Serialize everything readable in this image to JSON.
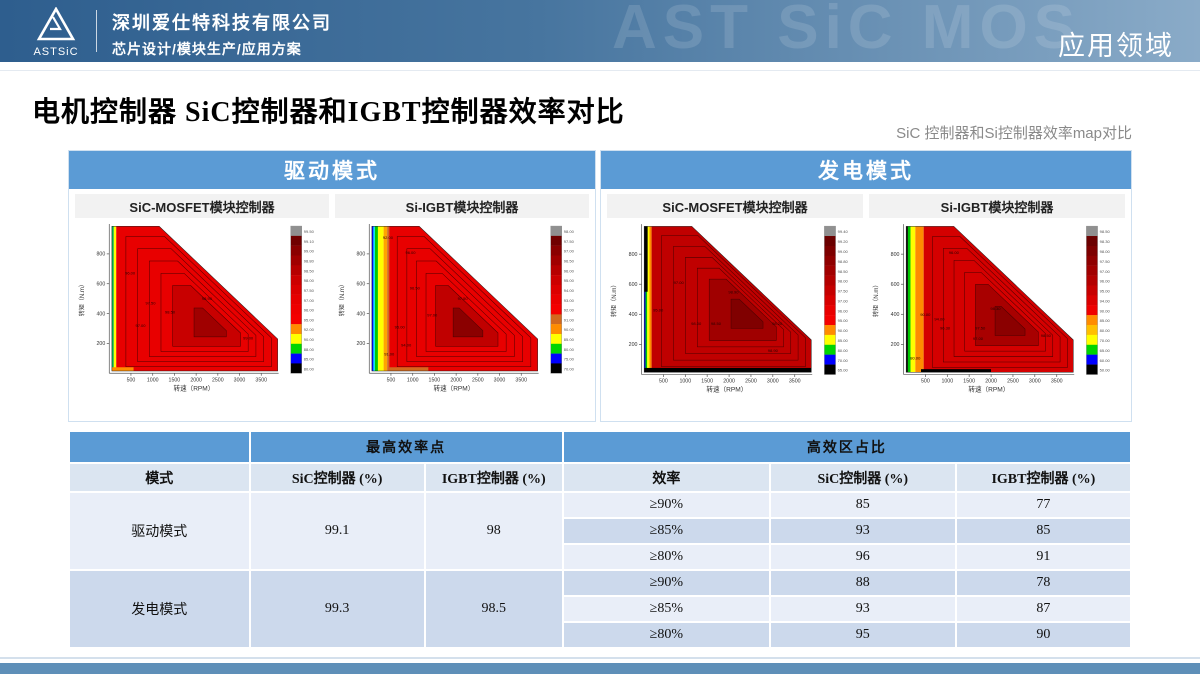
{
  "header": {
    "logo_text": "ASTSiC",
    "company_name": "深圳爱仕特科技有限公司",
    "company_tagline": "芯片设计/模块生产/应用方案",
    "watermark": "AST SiC MOS",
    "page_tag": "应用领域"
  },
  "page": {
    "title": "电机控制器 SiC控制器和IGBT控制器效率对比",
    "subtitle": "SiC 控制器和Si控制器效率map对比"
  },
  "panels": [
    {
      "title": "驱动模式",
      "plot_titles": [
        "SiC-MOSFET模块控制器",
        "Si-IGBT模块控制器"
      ]
    },
    {
      "title": "发电模式",
      "plot_titles": [
        "SiC-MOSFET模块控制器",
        "Si-IGBT模块控制器"
      ]
    }
  ],
  "chart_data": [
    {
      "type": "heatmap",
      "title": "SiC-MOSFET模块控制器",
      "panel": "驱动模式",
      "xlabel": "转速（RPM）",
      "ylabel": "转矩（N.m）",
      "xlim": [
        0,
        3900
      ],
      "ylim": [
        0,
        1000
      ],
      "x_ticks": [
        500,
        1000,
        1500,
        2000,
        2500,
        3000,
        3500
      ],
      "y_ticks": [
        200,
        400,
        600,
        800
      ],
      "peak_efficiency_pct": 99.1,
      "colorbar": {
        "labels": [
          "99.50",
          "99.10",
          "99.00",
          "98.80",
          "98.50",
          "98.00",
          "97.50",
          "97.00",
          "96.00",
          "95.00",
          "92.00",
          "90.00",
          "88.00",
          "85.00",
          "80.00"
        ],
        "colors": [
          "#909090",
          "#700000",
          "#8a0000",
          "#a00000",
          "#b60000",
          "#cc0000",
          "#da0000",
          "#e60000",
          "#ee0000",
          "#f40000",
          "#ff8c00",
          "#ffff00",
          "#00d500",
          "#0000ff",
          "#000000"
        ]
      },
      "contour_labels": [
        {
          "t": "98.90",
          "x": 2250,
          "y": 490
        },
        {
          "t": "98.50",
          "x": 1400,
          "y": 400
        },
        {
          "t": "97.50",
          "x": 950,
          "y": 460
        },
        {
          "t": "97.00",
          "x": 720,
          "y": 310
        },
        {
          "t": "96.00",
          "x": 480,
          "y": 660
        },
        {
          "t": "99.00",
          "x": 3200,
          "y": 225
        }
      ]
    },
    {
      "type": "heatmap",
      "title": "Si-IGBT模块控制器",
      "panel": "驱动模式",
      "xlabel": "转速（RPM）",
      "ylabel": "转矩（N.m）",
      "xlim": [
        0,
        3900
      ],
      "ylim": [
        0,
        1000
      ],
      "x_ticks": [
        500,
        1000,
        1500,
        2000,
        2500,
        3000,
        3500
      ],
      "y_ticks": [
        200,
        400,
        600,
        800
      ],
      "peak_efficiency_pct": 98,
      "colorbar": {
        "labels": [
          "98.00",
          "97.50",
          "97.00",
          "96.50",
          "96.00",
          "95.00",
          "94.00",
          "93.00",
          "92.00",
          "91.00",
          "90.00",
          "85.00",
          "80.00",
          "75.00",
          "70.00"
        ],
        "colors": [
          "#909090",
          "#700000",
          "#8a0000",
          "#a00000",
          "#b60000",
          "#cc0000",
          "#dc0000",
          "#ea0000",
          "#f40000",
          "#d2691e",
          "#ff8c00",
          "#ffff00",
          "#00d500",
          "#0000ff",
          "#000000"
        ]
      },
      "contour_labels": [
        {
          "t": "97.50",
          "x": 2150,
          "y": 490
        },
        {
          "t": "97.00",
          "x": 1450,
          "y": 380
        },
        {
          "t": "96.50",
          "x": 1050,
          "y": 560
        },
        {
          "t": "96.00",
          "x": 950,
          "y": 800
        },
        {
          "t": "95.00",
          "x": 700,
          "y": 300
        },
        {
          "t": "94.00",
          "x": 850,
          "y": 180
        },
        {
          "t": "92.00",
          "x": 430,
          "y": 900
        },
        {
          "t": "91.00",
          "x": 460,
          "y": 120
        }
      ]
    },
    {
      "type": "heatmap",
      "title": "SiC-MOSFET模块控制器",
      "panel": "发电模式",
      "xlabel": "转速（RPM）",
      "ylabel": "转矩（N.m）",
      "xlim": [
        0,
        3900
      ],
      "ylim": [
        0,
        1000
      ],
      "x_ticks": [
        500,
        1000,
        1500,
        2000,
        2500,
        3000,
        3500
      ],
      "y_ticks": [
        200,
        400,
        600,
        800
      ],
      "peak_efficiency_pct": 99.3,
      "colorbar": {
        "labels": [
          "99.40",
          "99.20",
          "99.00",
          "98.80",
          "98.50",
          "98.00",
          "97.50",
          "97.00",
          "96.00",
          "95.00",
          "90.00",
          "85.00",
          "80.00",
          "70.00",
          "65.00"
        ],
        "colors": [
          "#909090",
          "#6b0000",
          "#7d0000",
          "#8f0000",
          "#a10000",
          "#b30000",
          "#c50000",
          "#d70000",
          "#e90000",
          "#f40000",
          "#ff8c00",
          "#ffff00",
          "#00d500",
          "#0000ff",
          "#000000"
        ]
      },
      "contour_labels": [
        {
          "t": "98.90",
          "x": 2100,
          "y": 540
        },
        {
          "t": "98.50",
          "x": 1700,
          "y": 330
        },
        {
          "t": "98.00",
          "x": 1250,
          "y": 330
        },
        {
          "t": "97.00",
          "x": 850,
          "y": 600
        },
        {
          "t": "95.00",
          "x": 380,
          "y": 420
        },
        {
          "t": "98.20",
          "x": 3100,
          "y": 330
        },
        {
          "t": "98.90",
          "x": 3000,
          "y": 150
        }
      ]
    },
    {
      "type": "heatmap",
      "title": "Si-IGBT模块控制器",
      "panel": "发电模式",
      "xlabel": "转速（RPM）",
      "ylabel": "转矩（N.m）",
      "xlim": [
        0,
        3900
      ],
      "ylim": [
        0,
        1000
      ],
      "x_ticks": [
        500,
        1000,
        1500,
        2000,
        2500,
        3000,
        3500
      ],
      "y_ticks": [
        200,
        400,
        600,
        800
      ],
      "peak_efficiency_pct": 98.5,
      "colorbar": {
        "labels": [
          "98.50",
          "98.30",
          "98.00",
          "97.50",
          "97.00",
          "96.00",
          "95.00",
          "94.00",
          "90.00",
          "85.00",
          "80.00",
          "70.00",
          "65.00",
          "60.00",
          "50.00"
        ],
        "colors": [
          "#909090",
          "#6b0000",
          "#7d0000",
          "#8f0000",
          "#a10000",
          "#b30000",
          "#c70000",
          "#db0000",
          "#ef0000",
          "#ff8c00",
          "#ffc000",
          "#ffff00",
          "#00d500",
          "#0000ff",
          "#000000"
        ]
      },
      "contour_labels": [
        {
          "t": "98.30",
          "x": 2100,
          "y": 430
        },
        {
          "t": "97.50",
          "x": 1750,
          "y": 300
        },
        {
          "t": "97.00",
          "x": 1700,
          "y": 230
        },
        {
          "t": "96.30",
          "x": 950,
          "y": 300
        },
        {
          "t": "96.00",
          "x": 1150,
          "y": 800
        },
        {
          "t": "94.00",
          "x": 820,
          "y": 360
        },
        {
          "t": "90.00",
          "x": 500,
          "y": 390
        },
        {
          "t": "80.00",
          "x": 270,
          "y": 100
        },
        {
          "t": "98.50",
          "x": 3250,
          "y": 250
        }
      ]
    }
  ],
  "table": {
    "group_headers": [
      "",
      "最高效率点",
      "高效区占比"
    ],
    "columns": [
      "模式",
      "SiC控制器 (%)",
      "IGBT控制器 (%)",
      "效率",
      "SiC控制器 (%)",
      "IGBT控制器 (%)"
    ],
    "modes": [
      {
        "mode": "驱动模式",
        "sic_peak": "99.1",
        "igbt_peak": "98",
        "rows": [
          [
            "≥90%",
            "85",
            "77"
          ],
          [
            "≥85%",
            "93",
            "85"
          ],
          [
            "≥80%",
            "96",
            "91"
          ]
        ]
      },
      {
        "mode": "发电模式",
        "sic_peak": "99.3",
        "igbt_peak": "98.5",
        "rows": [
          [
            "≥90%",
            "88",
            "78"
          ],
          [
            "≥85%",
            "93",
            "87"
          ],
          [
            "≥80%",
            "95",
            "90"
          ]
        ]
      }
    ]
  },
  "colors": {
    "accent_blue": "#5b9bd5",
    "header_gradient_left": "#2e5e8e",
    "header_gradient_right": "#8aabc8",
    "table_subheader": "#dbe5f1",
    "table_row_light": "#e9eef8",
    "table_row_dark": "#ccd9ec",
    "footer_bar": "#5e8fb8"
  }
}
